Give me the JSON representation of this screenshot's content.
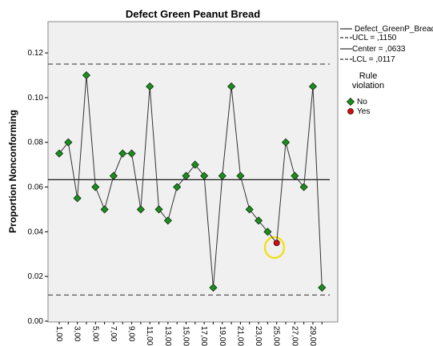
{
  "chart_data": {
    "type": "control",
    "title": "Defect Green Peanut Bread",
    "y_label": "Proportion Nonconforming",
    "categories": [
      "1,00",
      null,
      "3,00",
      null,
      "5,00",
      null,
      "7,00",
      null,
      "9,00",
      null,
      "11,00",
      null,
      "13,00",
      null,
      "15,00",
      null,
      "17,00",
      null,
      "19,00",
      null,
      "21,00",
      null,
      "23,00",
      null,
      "25,00",
      null,
      "27,00",
      null,
      "29,00",
      null
    ],
    "series": [
      {
        "name": "Defect_GreenP_Bread",
        "color": "#1e8c1e",
        "values": [
          0.075,
          0.08,
          0.055,
          0.11,
          0.06,
          0.05,
          0.065,
          0.075,
          0.075,
          0.05,
          0.105,
          0.05,
          0.045,
          0.06,
          0.065,
          0.07,
          0.065,
          0.015,
          0.065,
          0.105,
          0.065,
          0.05,
          0.045,
          0.04,
          0.035,
          0.08,
          0.065,
          0.06,
          0.105,
          0.015
        ],
        "rule_violation": [
          "No",
          "No",
          "No",
          "No",
          "No",
          "No",
          "No",
          "No",
          "No",
          "No",
          "No",
          "No",
          "No",
          "No",
          "No",
          "No",
          "No",
          "No",
          "No",
          "No",
          "No",
          "No",
          "No",
          "No",
          "Yes",
          "No",
          "No",
          "No",
          "No",
          "No"
        ]
      }
    ],
    "control_limits": [
      {
        "value": 0.115,
        "label": "UCL = ,1150",
        "style": "dashed"
      },
      {
        "value": 0.0633,
        "label": "Center = ,0633",
        "style": "solid"
      },
      {
        "value": 0.0117,
        "label": "LCL = ,0117",
        "style": "dashed"
      }
    ],
    "violation_legend": {
      "title": [
        "Rule",
        "violation"
      ],
      "entries": [
        {
          "name": "No",
          "color": "#1e8c1e"
        },
        {
          "name": "Yes",
          "color": "#d01010"
        }
      ]
    },
    "ylim": [
      0,
      0.134
    ],
    "yticks": [
      {
        "value": 0,
        "label": "0.00"
      },
      {
        "value": 0.02,
        "label": "0.02"
      },
      {
        "value": 0.04,
        "label": "0.04"
      },
      {
        "value": 0.06,
        "label": "0.06"
      },
      {
        "value": 0.08,
        "label": "0.08"
      },
      {
        "value": 0.1,
        "label": "0.10"
      },
      {
        "value": 0.12,
        "label": "0.12"
      }
    ]
  }
}
